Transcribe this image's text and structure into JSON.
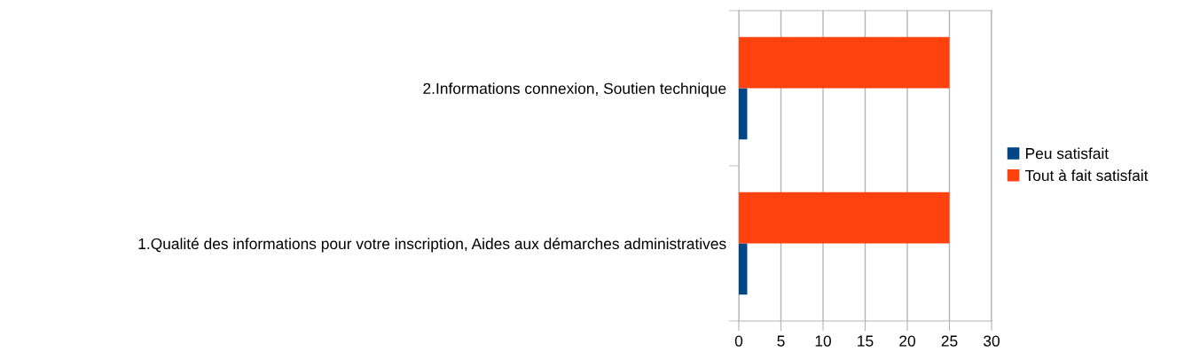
{
  "chart_data": {
    "type": "bar",
    "orientation": "horizontal",
    "categories": [
      "2.Informations connexion, Soutien technique",
      "1.Qualité des informations pour votre inscription, Aides aux démarches administratives"
    ],
    "series": [
      {
        "name": "Peu satisfait",
        "color": "#004586",
        "values": [
          1,
          1
        ]
      },
      {
        "name": "Tout à fait satisfait",
        "color": "#ff420e",
        "values": [
          25,
          25
        ]
      }
    ],
    "xlim": [
      0,
      30
    ],
    "xticks": [
      0,
      5,
      10,
      15,
      20,
      25,
      30
    ],
    "grid": "x",
    "legend": "right"
  }
}
